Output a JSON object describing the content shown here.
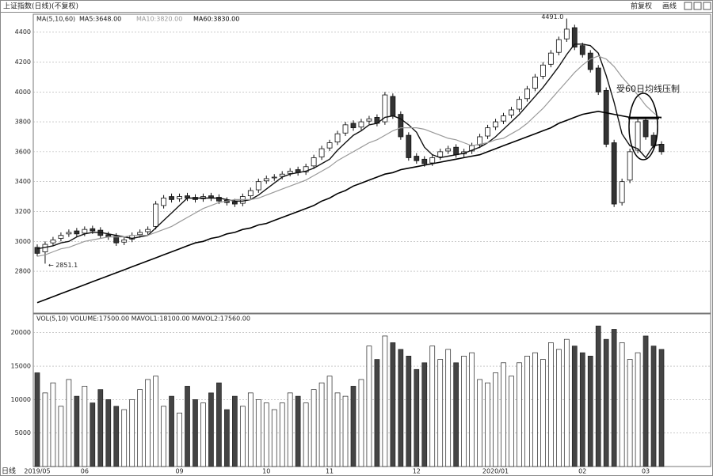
{
  "header": {
    "title": "上证指数(日线)(不复权)",
    "buttons": [
      "前复权",
      "画线"
    ],
    "x_axis_label": "日线"
  },
  "chart_data": [
    {
      "type": "candlestick",
      "legend_title": "MA(5,10,60)",
      "categories": [
        "2019/05",
        null,
        null,
        null,
        null,
        null,
        "06",
        null,
        null,
        null,
        null,
        null,
        null,
        null,
        null,
        null,
        null,
        null,
        "09",
        null,
        null,
        null,
        null,
        null,
        null,
        null,
        null,
        null,
        null,
        "10",
        null,
        null,
        null,
        null,
        null,
        null,
        null,
        "11",
        null,
        null,
        null,
        null,
        null,
        null,
        null,
        null,
        null,
        null,
        "12",
        null,
        null,
        null,
        null,
        null,
        null,
        null,
        null,
        null,
        "2020/01",
        null,
        null,
        null,
        null,
        null,
        null,
        null,
        null,
        null,
        null,
        "02",
        null,
        null,
        null,
        null,
        null,
        null,
        null,
        "03",
        null,
        null
      ],
      "open": [
        2960,
        2930,
        2990,
        3020,
        3050,
        3070,
        3055,
        3085,
        3075,
        3045,
        3035,
        2995,
        3015,
        3045,
        3065,
        3100,
        3240,
        3300,
        3285,
        3305,
        3295,
        3285,
        3305,
        3295,
        3275,
        3265,
        3255,
        3305,
        3345,
        3405,
        3425,
        3435,
        3455,
        3480,
        3465,
        3505,
        3565,
        3625,
        3665,
        3725,
        3790,
        3765,
        3805,
        3830,
        3800,
        3970,
        3850,
        3710,
        3570,
        3550,
        3525,
        3565,
        3605,
        3630,
        3585,
        3605,
        3645,
        3705,
        3765,
        3805,
        3845,
        3885,
        3955,
        4025,
        4105,
        4185,
        4265,
        4355,
        4430,
        4310,
        4260,
        4160,
        4010,
        3660,
        3260,
        3410,
        3610,
        3810,
        3710,
        3650
      ],
      "high": [
        2980,
        3000,
        3030,
        3060,
        3080,
        3090,
        3100,
        3105,
        3095,
        3065,
        3055,
        3030,
        3060,
        3080,
        3100,
        3270,
        3310,
        3320,
        3320,
        3325,
        3315,
        3320,
        3325,
        3315,
        3295,
        3285,
        3320,
        3360,
        3420,
        3440,
        3450,
        3470,
        3490,
        3500,
        3520,
        3580,
        3640,
        3680,
        3740,
        3800,
        3810,
        3820,
        3840,
        3850,
        4000,
        3990,
        3870,
        3730,
        3590,
        3570,
        3580,
        3620,
        3640,
        3650,
        3620,
        3660,
        3720,
        3780,
        3820,
        3860,
        3900,
        3970,
        4040,
        4120,
        4200,
        4280,
        4370,
        4491,
        4450,
        4330,
        4280,
        4180,
        4030,
        3680,
        3420,
        3620,
        3820,
        3830,
        3730,
        3670
      ],
      "low": [
        2900,
        2851.1,
        2970,
        3000,
        3030,
        3030,
        3035,
        3050,
        3020,
        3010,
        2970,
        2975,
        2995,
        3025,
        3045,
        3080,
        3220,
        3260,
        3265,
        3270,
        3260,
        3265,
        3270,
        3250,
        3240,
        3230,
        3235,
        3285,
        3325,
        3385,
        3405,
        3415,
        3435,
        3440,
        3445,
        3485,
        3545,
        3605,
        3645,
        3705,
        3740,
        3745,
        3785,
        3770,
        3780,
        3820,
        3680,
        3540,
        3520,
        3500,
        3505,
        3545,
        3585,
        3560,
        3565,
        3585,
        3625,
        3685,
        3745,
        3785,
        3825,
        3865,
        3935,
        4005,
        4085,
        4165,
        4245,
        4335,
        4280,
        4230,
        4130,
        3980,
        3630,
        3230,
        3240,
        3390,
        3590,
        3680,
        3620,
        3580
      ],
      "close": [
        2920,
        2980,
        3010,
        3040,
        3060,
        3050,
        3080,
        3070,
        3040,
        3030,
        2990,
        3010,
        3040,
        3060,
        3080,
        3250,
        3290,
        3280,
        3300,
        3290,
        3280,
        3300,
        3290,
        3270,
        3260,
        3250,
        3300,
        3340,
        3400,
        3420,
        3430,
        3450,
        3470,
        3460,
        3500,
        3560,
        3620,
        3660,
        3720,
        3780,
        3760,
        3800,
        3820,
        3790,
        3980,
        3840,
        3700,
        3560,
        3540,
        3520,
        3560,
        3600,
        3620,
        3580,
        3600,
        3640,
        3700,
        3760,
        3800,
        3840,
        3880,
        3950,
        4020,
        4100,
        4180,
        4260,
        4350,
        4420,
        4300,
        4250,
        4150,
        4000,
        3650,
        3250,
        3400,
        3600,
        3800,
        3700,
        3640,
        3600
      ],
      "lines": [
        {
          "name": "MA5:3648.00",
          "color": "#111111",
          "width": 1.4,
          "values": [
            2950,
            2960,
            2970,
            2990,
            3000,
            3030,
            3050,
            3060,
            3060,
            3050,
            3040,
            3030,
            3020,
            3030,
            3040,
            3090,
            3140,
            3190,
            3240,
            3290,
            3290,
            3290,
            3290,
            3290,
            3280,
            3270,
            3270,
            3280,
            3310,
            3350,
            3390,
            3430,
            3450,
            3460,
            3470,
            3490,
            3520,
            3550,
            3610,
            3660,
            3710,
            3740,
            3780,
            3790,
            3830,
            3840,
            3820,
            3780,
            3730,
            3630,
            3580,
            3560,
            3570,
            3580,
            3590,
            3610,
            3630,
            3660,
            3700,
            3750,
            3800,
            3850,
            3910,
            3970,
            4030,
            4100,
            4170,
            4250,
            4320,
            4320,
            4310,
            4260,
            4110,
            3930,
            3720,
            3640,
            3620,
            3560,
            3640,
            3650
          ]
        },
        {
          "name": "MA10:3820.00",
          "color": "#999999",
          "width": 1.2,
          "values": [
            2900,
            2910,
            2930,
            2950,
            2960,
            2980,
            3000,
            3010,
            3020,
            3030,
            3030,
            3030,
            3040,
            3040,
            3040,
            3060,
            3080,
            3100,
            3130,
            3160,
            3190,
            3220,
            3240,
            3260,
            3270,
            3280,
            3280,
            3280,
            3290,
            3310,
            3330,
            3350,
            3370,
            3390,
            3410,
            3440,
            3470,
            3500,
            3540,
            3570,
            3600,
            3630,
            3660,
            3680,
            3710,
            3740,
            3760,
            3760,
            3760,
            3750,
            3730,
            3710,
            3690,
            3680,
            3660,
            3640,
            3650,
            3660,
            3680,
            3690,
            3720,
            3750,
            3790,
            3840,
            3890,
            3950,
            4010,
            4070,
            4130,
            4180,
            4220,
            4240,
            4220,
            4170,
            4100,
            4040,
            3980,
            3910,
            3860,
            3820
          ]
        },
        {
          "name": "MA60:3830.00",
          "color": "#000000",
          "width": 1.6,
          "values": [
            2590,
            2610,
            2630,
            2650,
            2670,
            2690,
            2710,
            2730,
            2750,
            2770,
            2790,
            2810,
            2830,
            2850,
            2870,
            2890,
            2910,
            2930,
            2950,
            2970,
            2990,
            3000,
            3020,
            3030,
            3050,
            3060,
            3080,
            3090,
            3110,
            3120,
            3140,
            3160,
            3180,
            3200,
            3220,
            3240,
            3270,
            3290,
            3320,
            3340,
            3370,
            3390,
            3410,
            3430,
            3450,
            3460,
            3480,
            3490,
            3500,
            3510,
            3520,
            3530,
            3540,
            3550,
            3560,
            3570,
            3580,
            3600,
            3620,
            3640,
            3660,
            3680,
            3700,
            3720,
            3740,
            3760,
            3790,
            3810,
            3830,
            3850,
            3860,
            3870,
            3860,
            3850,
            3840,
            3830,
            3830,
            3830,
            3830,
            3830
          ]
        }
      ],
      "annotations": {
        "high_label": "4491.0",
        "low_label": "← 2851.1",
        "note": "受60日均线压制"
      },
      "ylim": [
        2520,
        4520
      ],
      "yticks": [
        2800,
        3000,
        3200,
        3400,
        3600,
        3800,
        4000,
        4200,
        4400
      ],
      "grid": true
    },
    {
      "type": "bar",
      "legend_title": "VOL(5,10) VOLUME:17500.00 MAVOL1:18100.00 MAVOL2:17560.00",
      "values": [
        14000,
        11000,
        12500,
        9000,
        13000,
        10500,
        12000,
        9500,
        11500,
        10000,
        9000,
        8500,
        10000,
        11500,
        13000,
        13500,
        9000,
        10500,
        8000,
        12000,
        10000,
        9500,
        11000,
        12500,
        8500,
        10500,
        9000,
        11000,
        10000,
        9500,
        8500,
        9500,
        11000,
        10500,
        9500,
        11500,
        12500,
        13500,
        11000,
        10500,
        12000,
        13000,
        18000,
        16000,
        19500,
        18500,
        17500,
        16500,
        14500,
        15500,
        18000,
        16000,
        17500,
        15500,
        16500,
        17000,
        13000,
        12500,
        14000,
        15500,
        13500,
        15500,
        16500,
        17000,
        16000,
        18500,
        17500,
        19000,
        18000,
        17000,
        16500,
        21000,
        19000,
        20500,
        18500,
        16000,
        17000,
        19500,
        18000,
        17500
      ],
      "ylim": [
        0,
        22800
      ],
      "yticks": [
        5000,
        10000,
        15000,
        20000
      ],
      "grid": true
    }
  ]
}
